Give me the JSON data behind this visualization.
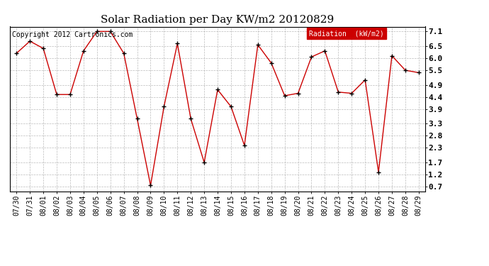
{
  "title": "Solar Radiation per Day KW/m2 20120829",
  "copyright": "Copyright 2012 Cartronics.com",
  "legend_label": "Radiation  (kW/m2)",
  "dates": [
    "07/30",
    "07/31",
    "08/01",
    "08/02",
    "08/03",
    "08/04",
    "08/05",
    "08/06",
    "08/07",
    "08/08",
    "08/09",
    "08/10",
    "08/11",
    "08/12",
    "08/13",
    "08/14",
    "08/15",
    "08/16",
    "08/17",
    "08/18",
    "08/19",
    "08/20",
    "08/21",
    "08/22",
    "08/23",
    "08/24",
    "08/25",
    "08/26",
    "08/27",
    "08/28",
    "08/29"
  ],
  "values": [
    6.2,
    6.7,
    6.4,
    4.5,
    4.5,
    6.3,
    7.1,
    7.1,
    6.2,
    3.5,
    0.75,
    4.0,
    6.6,
    3.5,
    1.7,
    4.7,
    4.0,
    2.4,
    6.55,
    5.8,
    4.45,
    4.55,
    6.05,
    6.3,
    4.6,
    4.55,
    5.1,
    1.3,
    6.1,
    5.5,
    5.4
  ],
  "line_color": "#cc0000",
  "marker_color": "#000000",
  "bg_color": "#ffffff",
  "plot_bg_color": "#ffffff",
  "grid_color": "#aaaaaa",
  "yticks": [
    0.7,
    1.2,
    1.7,
    2.3,
    2.8,
    3.3,
    3.9,
    4.4,
    4.9,
    5.5,
    6.0,
    6.5,
    7.1
  ],
  "ylim": [
    0.5,
    7.3
  ],
  "legend_bg": "#cc0000",
  "legend_text_color": "#ffffff",
  "title_fontsize": 11,
  "tick_fontsize": 7,
  "copyright_fontsize": 7
}
